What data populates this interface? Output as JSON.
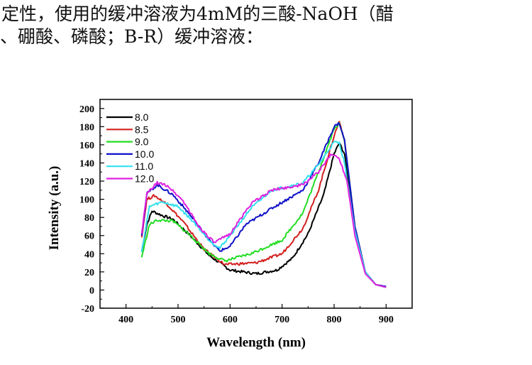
{
  "caption": {
    "line1": "定性，使用的缓冲溶液为4mM的三酸-NaOH（醋",
    "line2": "、硼酸、磷酸；B-R）缓冲溶液："
  },
  "chart_data": {
    "type": "line",
    "title": "",
    "xlabel": "Wavelength (nm)",
    "ylabel": "Intensity (a.u.)",
    "xlim": [
      350,
      950
    ],
    "ylim": [
      -20,
      210
    ],
    "xticks": [
      400,
      500,
      600,
      700,
      800,
      900
    ],
    "yticks": [
      -20,
      0,
      20,
      40,
      60,
      80,
      100,
      120,
      140,
      160,
      180,
      200
    ],
    "grid": false,
    "legend_position": "top-left",
    "series": [
      {
        "name": "8.0",
        "color": "#000000",
        "x": [
          430,
          440,
          450,
          470,
          490,
          520,
          560,
          600,
          650,
          690,
          720,
          750,
          780,
          800,
          810,
          820,
          840,
          860,
          880,
          900
        ],
        "y": [
          42,
          72,
          87,
          82,
          78,
          62,
          38,
          22,
          18,
          22,
          35,
          62,
          105,
          150,
          162,
          150,
          70,
          20,
          6,
          3
        ]
      },
      {
        "name": "8.5",
        "color": "#d42020",
        "x": [
          430,
          440,
          455,
          480,
          510,
          550,
          590,
          650,
          700,
          740,
          770,
          800,
          810,
          820,
          840,
          860,
          880,
          900
        ],
        "y": [
          58,
          100,
          104,
          94,
          75,
          45,
          28,
          30,
          40,
          68,
          110,
          170,
          186,
          165,
          70,
          20,
          6,
          3
        ]
      },
      {
        "name": "9.0",
        "color": "#22dd22",
        "x": [
          430,
          445,
          460,
          490,
          520,
          560,
          590,
          640,
          700,
          740,
          770,
          800,
          810,
          820,
          840,
          860,
          880,
          900
        ],
        "y": [
          36,
          72,
          77,
          76,
          62,
          40,
          32,
          40,
          55,
          85,
          130,
          178,
          183,
          165,
          70,
          20,
          6,
          3
        ]
      },
      {
        "name": "10.0",
        "color": "#1010c8",
        "x": [
          430,
          440,
          460,
          490,
          520,
          560,
          580,
          600,
          630,
          680,
          740,
          770,
          800,
          810,
          820,
          840,
          860,
          880,
          900
        ],
        "y": [
          60,
          106,
          116,
          105,
          85,
          55,
          43,
          48,
          72,
          90,
          110,
          140,
          180,
          184,
          165,
          70,
          20,
          6,
          4
        ]
      },
      {
        "name": "11.0",
        "color": "#33e0ee",
        "x": [
          430,
          445,
          470,
          500,
          530,
          560,
          580,
          600,
          640,
          680,
          740,
          770,
          800,
          810,
          820,
          840,
          860,
          880,
          900
        ],
        "y": [
          42,
          92,
          97,
          92,
          75,
          55,
          46,
          60,
          90,
          110,
          118,
          138,
          163,
          162,
          140,
          65,
          20,
          6,
          3
        ]
      },
      {
        "name": "12.0",
        "color": "#e020e0",
        "x": [
          430,
          440,
          460,
          480,
          510,
          540,
          570,
          600,
          640,
          680,
          740,
          770,
          795,
          810,
          825,
          840,
          860,
          880,
          900
        ],
        "y": [
          62,
          106,
          118,
          115,
          98,
          70,
          52,
          62,
          95,
          110,
          116,
          130,
          150,
          145,
          120,
          60,
          18,
          6,
          3
        ]
      }
    ]
  }
}
